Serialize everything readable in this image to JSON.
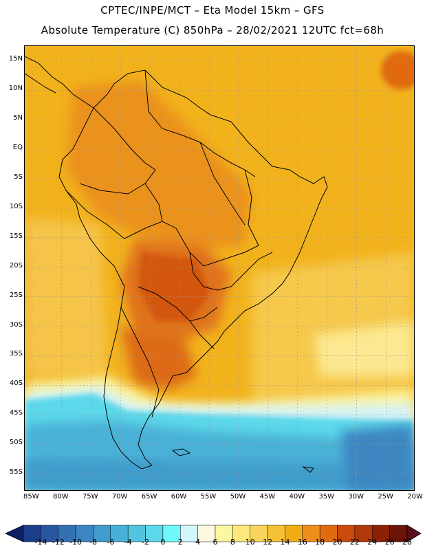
{
  "title_line1": "CPTEC/INPE/MCT –  Eta Model 15km – GFS",
  "title_line2": "Absolute Temperature (C) 850hPa – 28/02/2021 12UTC fct=68h",
  "lat_labels": [
    "15N",
    "10N",
    "5N",
    "EQ",
    "5S",
    "10S",
    "15S",
    "20S",
    "25S",
    "30S",
    "35S",
    "40S",
    "45S",
    "50S",
    "55S"
  ],
  "lat_values": [
    15,
    10,
    5,
    0,
    -5,
    -10,
    -15,
    -20,
    -25,
    -30,
    -35,
    -40,
    -45,
    -50,
    -55
  ],
  "lon_labels": [
    "85W",
    "80W",
    "75W",
    "70W",
    "65W",
    "60W",
    "55W",
    "50W",
    "45W",
    "40W",
    "35W",
    "30W",
    "25W",
    "20W"
  ],
  "lon_values": [
    -85,
    -80,
    -75,
    -70,
    -65,
    -60,
    -55,
    -50,
    -45,
    -40,
    -35,
    -30,
    -25,
    -20
  ],
  "colorbar": {
    "ticks": [
      "-14",
      "-12",
      "-10",
      "-8",
      "-6",
      "-4",
      "-2",
      "0",
      "2",
      "4",
      "6",
      "8",
      "10",
      "12",
      "14",
      "16",
      "18",
      "20",
      "22",
      "24",
      "26",
      "28"
    ],
    "colors": [
      "#1c3c8c",
      "#2856a0",
      "#3470b4",
      "#3c86c2",
      "#409ccc",
      "#48b0d6",
      "#52c4e0",
      "#5cd8ea",
      "#6ef8fc",
      "#d2f6fc",
      "#fff8e0",
      "#fcf8a0",
      "#fce87c",
      "#f8d45c",
      "#f4c034",
      "#f2ac14",
      "#eb8e1c",
      "#e06a10",
      "#c84a0c",
      "#b0380a",
      "#8c2006",
      "#6c1408"
    ]
  },
  "map": {
    "background_color": "#f2b21c"
  }
}
